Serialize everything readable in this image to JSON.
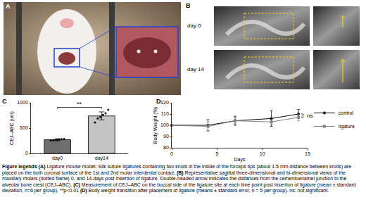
{
  "panel_labels": [
    "A",
    "B",
    "C",
    "D"
  ],
  "panel_b": {
    "rows": [
      "day 0",
      "day 14"
    ]
  },
  "chart_data": [
    {
      "type": "bar",
      "categories": [
        "day0",
        "day14"
      ],
      "values": [
        270,
        740
      ],
      "errors": [
        20,
        80
      ],
      "points": [
        [
          255,
          262,
          268,
          275,
          280,
          285
        ],
        [
          610,
          690,
          720,
          760,
          790,
          860
        ]
      ],
      "colors": [
        "#6e6e6e",
        "#c4c4c4"
      ],
      "y_label": "CEJ–ABC (um)",
      "ylim": [
        0,
        1000
      ],
      "yticks": [
        0,
        500,
        1000
      ],
      "annotations": [
        "**"
      ],
      "grid": false
    },
    {
      "type": "line",
      "x": [
        0,
        4,
        7,
        11,
        14
      ],
      "series": [
        {
          "name": "control",
          "color": "#000000",
          "marker": "circle",
          "values": [
            100,
            100,
            104,
            106,
            110
          ],
          "errors": [
            0,
            5,
            4,
            7,
            4
          ]
        },
        {
          "name": "ligature",
          "color": "#808080",
          "marker": "square",
          "values": [
            100,
            99,
            104,
            103,
            107
          ],
          "errors": [
            0,
            4,
            3,
            2,
            3
          ]
        }
      ],
      "x_label": "Days",
      "y_label": "Body Weight (%)",
      "xlim": [
        0,
        15
      ],
      "xticks": [
        0,
        5,
        10,
        15
      ],
      "ylim": [
        80,
        120
      ],
      "yticks": [
        80,
        90,
        100,
        110,
        120
      ],
      "legend": "right",
      "annotations": [
        "ns"
      ],
      "grid": false
    }
  ],
  "caption": {
    "heading": "Figure legends",
    "items": [
      {
        "label": "(A)",
        "text": "Ligature mouse model: Silk suture ligatures containing two knots in the inside of the forceps tips (about 1.5 mm distance between knots) are placed on the both coronal surface of the 1st and 2nd molar interdental contact."
      },
      {
        "label": "(B)",
        "text": "Representative sagittal three-dimensional and bi-dimensional views of the maxillary molars (dotted flame) 0- and 14-days post insertion of ligature. Double-headed arrow indicates the distances from the cementoenamel junction to the alveolar bone crest (CEJ–ABC)."
      },
      {
        "label": "(C)",
        "text": "Measurement of CEJ–ABC on the buccal side of the ligature site at each time point post insertion of ligature (mean ± standard deviation, n=6 per group). **p<0.01"
      },
      {
        "label": "(D)",
        "text": "Body weight transition after placement of ligature (means ± standard error, n = 5 per group). ns: not significant."
      }
    ]
  }
}
